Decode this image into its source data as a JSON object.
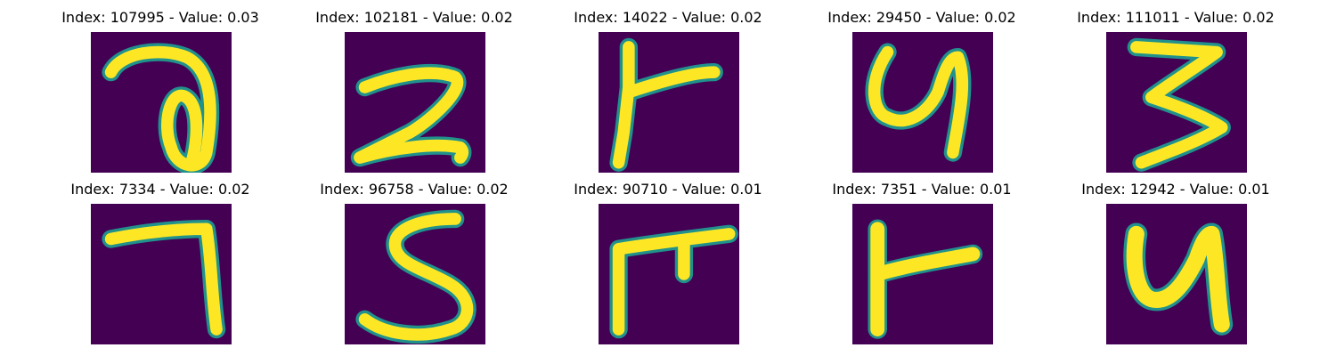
{
  "colors": {
    "background": "#440154",
    "stroke_edge": "#21918c",
    "stroke_core": "#fde725"
  },
  "panels": [
    {
      "title": "Index: 107995 - Value: 0.03",
      "glyph": "2"
    },
    {
      "title": "Index: 102181 - Value: 0.02",
      "glyph": "2"
    },
    {
      "title": "Index: 14022 - Value: 0.02",
      "glyph": "r"
    },
    {
      "title": "Index: 29450 - Value: 0.02",
      "glyph": "y"
    },
    {
      "title": "Index: 111011 - Value: 0.02",
      "glyph": "3"
    },
    {
      "title": "Index: 7334 - Value: 0.02",
      "glyph": "7"
    },
    {
      "title": "Index: 96758 - Value: 0.02",
      "glyph": "5"
    },
    {
      "title": "Index: 90710 - Value: 0.01",
      "glyph": "t"
    },
    {
      "title": "Index: 7351 - Value: 0.01",
      "glyph": "r"
    },
    {
      "title": "Index: 12942 - Value: 0.01",
      "glyph": "y"
    }
  ]
}
